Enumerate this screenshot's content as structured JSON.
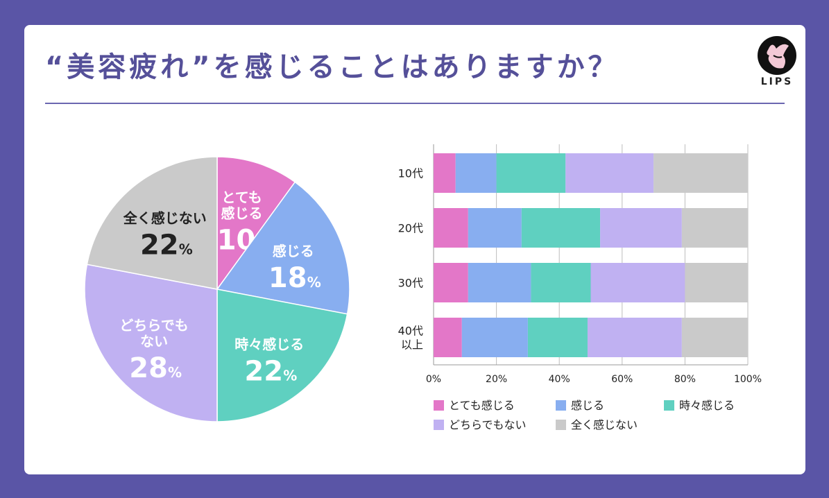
{
  "title": "“美容疲れ”を感じることはありますか？",
  "logo": {
    "name": "LIPS"
  },
  "colors": {
    "very": "#e377c8",
    "feel": "#88aef0",
    "sometimes": "#5fd0c0",
    "neither": "#c0b1f2",
    "none": "#cacaca",
    "accent": "#5a55a6"
  },
  "chart_data": [
    {
      "type": "pie",
      "title": "",
      "slices": [
        {
          "key": "very",
          "label_lines": [
            "とても",
            "感じる"
          ],
          "value": 10,
          "value_text": "10",
          "pct": "%",
          "text_color": "#ffffff"
        },
        {
          "key": "feel",
          "label_lines": [
            "感じる"
          ],
          "value": 18,
          "value_text": "18",
          "pct": "%",
          "text_color": "#ffffff"
        },
        {
          "key": "sometimes",
          "label_lines": [
            "時々感じる"
          ],
          "value": 22,
          "value_text": "22",
          "pct": "%",
          "text_color": "#ffffff"
        },
        {
          "key": "neither",
          "label_lines": [
            "どちらでも",
            "ない"
          ],
          "value": 28,
          "value_text": "28",
          "pct": "%",
          "text_color": "#ffffff"
        },
        {
          "key": "none",
          "label_lines": [
            "全く感じない"
          ],
          "value": 22,
          "value_text": "22",
          "pct": "%",
          "text_color": "#222222"
        }
      ]
    },
    {
      "type": "bar",
      "orientation": "horizontal",
      "stacked": true,
      "categories": [
        [
          "10代"
        ],
        [
          "20代"
        ],
        [
          "30代"
        ],
        [
          "40代",
          "以上"
        ]
      ],
      "series": [
        {
          "key": "very",
          "name": "とても感じる",
          "values": [
            7,
            11,
            11,
            9
          ]
        },
        {
          "key": "feel",
          "name": "感じる",
          "values": [
            13,
            17,
            20,
            21
          ]
        },
        {
          "key": "sometimes",
          "name": "時々感じる",
          "values": [
            22,
            25,
            19,
            19
          ]
        },
        {
          "key": "neither",
          "name": "どちらでもない",
          "values": [
            28,
            26,
            30,
            30
          ]
        },
        {
          "key": "none",
          "name": "全く感じない",
          "values": [
            30,
            21,
            20,
            21
          ]
        }
      ],
      "xlim": [
        0,
        100
      ],
      "xticks": [
        "0%",
        "20%",
        "40%",
        "60%",
        "80%",
        "100%"
      ],
      "grid": true,
      "legend": "bottom"
    }
  ]
}
